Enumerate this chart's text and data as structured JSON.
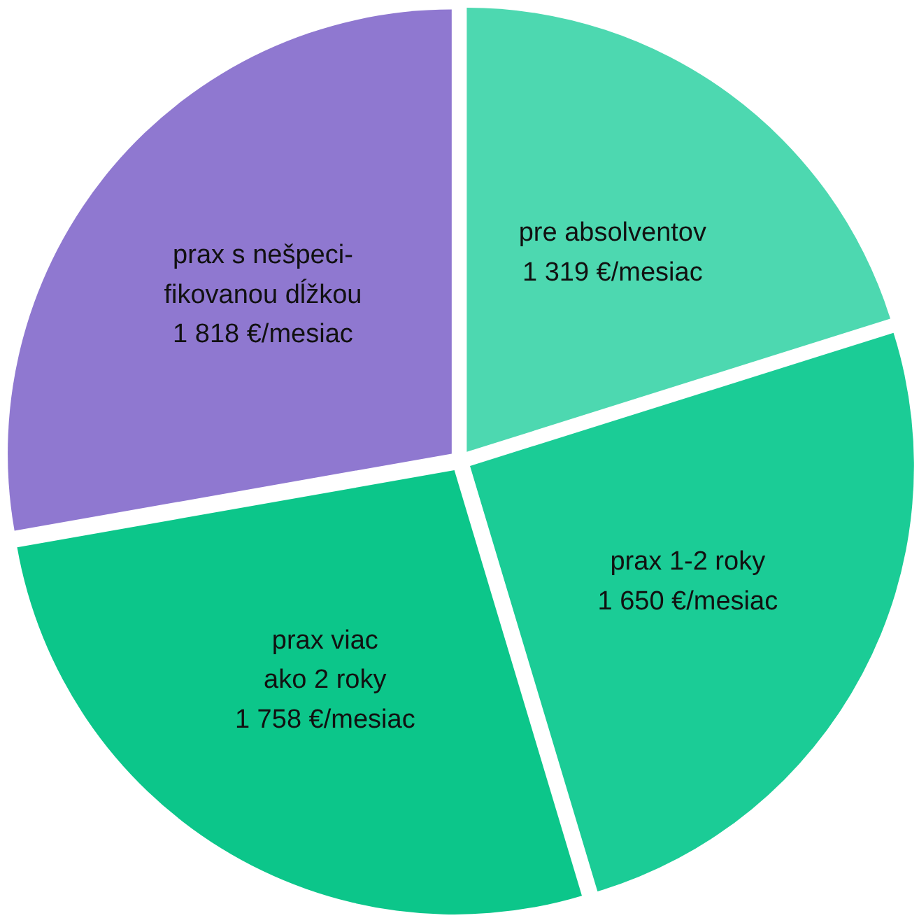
{
  "chart_data": {
    "type": "pie",
    "categories": [
      "pre absolventov",
      "prax 1-2 roky",
      "prax viac\nako 2 roky",
      "prax s nešpeci-\nfikovanou dĺžkou"
    ],
    "values": [
      1319,
      1650,
      1758,
      1818
    ],
    "colors": [
      "#4dd8b0",
      "#1bcc96",
      "#0cc68a",
      "#8f78d0"
    ],
    "value_labels": [
      "1 319 €/mesiac",
      "1 650 €/mesiac",
      "1 758 €/mesiac",
      "1 818 €/mesiac"
    ],
    "legend": false
  }
}
